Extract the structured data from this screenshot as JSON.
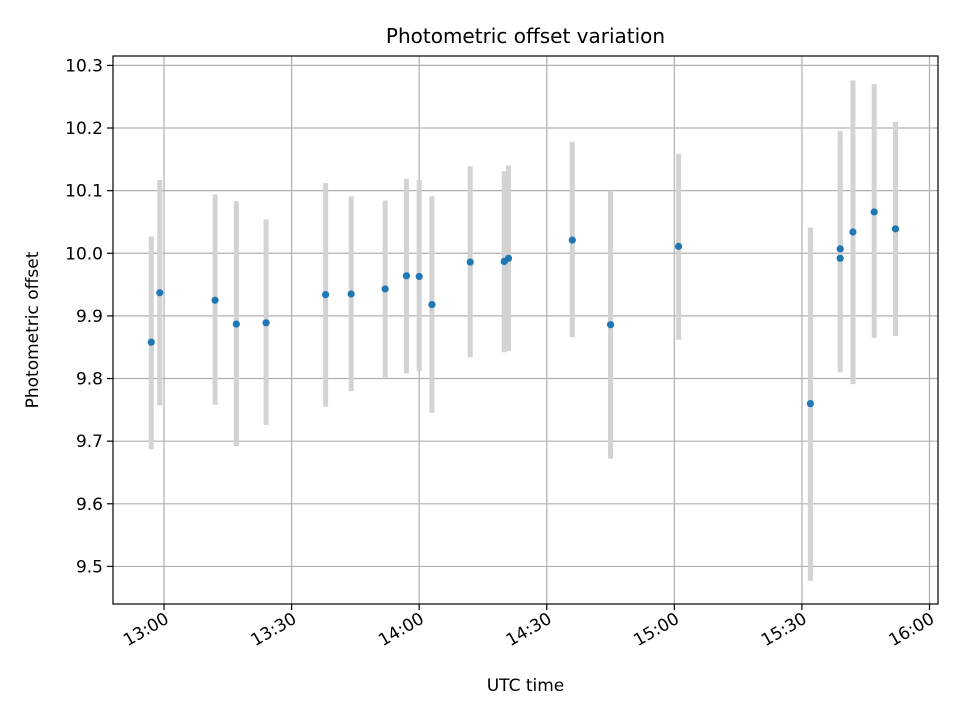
{
  "chart_data": {
    "type": "scatter",
    "title": "Photometric offset variation",
    "xlabel": "UTC time",
    "ylabel": "Photometric offset",
    "x_axis": {
      "kind": "time",
      "range": [
        "12:48",
        "16:02"
      ],
      "ticks": [
        "13:00",
        "13:30",
        "14:00",
        "14:30",
        "15:00",
        "15:30",
        "16:00"
      ]
    },
    "y_axis": {
      "range": [
        9.44,
        10.315
      ],
      "ticks": [
        "9.5",
        "9.6",
        "9.7",
        "9.8",
        "9.9",
        "10.0",
        "10.1",
        "10.2",
        "10.3"
      ]
    },
    "grid": true,
    "point_color": "#1f77b4",
    "errorbar_color": "#d3d3d3",
    "points": [
      {
        "x": "12:57",
        "y": 9.858,
        "yerr_low": 9.687,
        "yerr_high": 10.027
      },
      {
        "x": "12:59",
        "y": 9.937,
        "yerr_low": 9.757,
        "yerr_high": 10.117
      },
      {
        "x": "13:12",
        "y": 9.925,
        "yerr_low": 9.758,
        "yerr_high": 10.094
      },
      {
        "x": "13:17",
        "y": 9.887,
        "yerr_low": 9.692,
        "yerr_high": 10.083
      },
      {
        "x": "13:24",
        "y": 9.889,
        "yerr_low": 9.726,
        "yerr_high": 10.054
      },
      {
        "x": "13:38",
        "y": 9.934,
        "yerr_low": 9.755,
        "yerr_high": 10.112
      },
      {
        "x": "13:44",
        "y": 9.935,
        "yerr_low": 9.78,
        "yerr_high": 10.091
      },
      {
        "x": "13:52",
        "y": 9.943,
        "yerr_low": 9.802,
        "yerr_high": 10.084
      },
      {
        "x": "13:57",
        "y": 9.964,
        "yerr_low": 9.808,
        "yerr_high": 10.119
      },
      {
        "x": "14:00",
        "y": 9.963,
        "yerr_low": 9.812,
        "yerr_high": 10.117
      },
      {
        "x": "14:03",
        "y": 9.918,
        "yerr_low": 9.745,
        "yerr_high": 10.091
      },
      {
        "x": "14:12",
        "y": 9.986,
        "yerr_low": 9.834,
        "yerr_high": 10.139
      },
      {
        "x": "14:20",
        "y": 9.987,
        "yerr_low": 9.842,
        "yerr_high": 10.131
      },
      {
        "x": "14:21",
        "y": 9.992,
        "yerr_low": 9.844,
        "yerr_high": 10.14
      },
      {
        "x": "14:36",
        "y": 10.021,
        "yerr_low": 9.866,
        "yerr_high": 10.178
      },
      {
        "x": "14:45",
        "y": 9.886,
        "yerr_low": 9.672,
        "yerr_high": 10.1
      },
      {
        "x": "15:01",
        "y": 10.011,
        "yerr_low": 9.862,
        "yerr_high": 10.159
      },
      {
        "x": "15:32",
        "y": 9.76,
        "yerr_low": 9.477,
        "yerr_high": 10.041
      },
      {
        "x": "15:39",
        "y": 9.992,
        "yerr_low": 9.81,
        "yerr_high": 10.17
      },
      {
        "x": "15:39",
        "y": 10.007,
        "yerr_low": 9.82,
        "yerr_high": 10.195
      },
      {
        "x": "15:42",
        "y": 10.034,
        "yerr_low": 9.791,
        "yerr_high": 10.276
      },
      {
        "x": "15:47",
        "y": 10.066,
        "yerr_low": 9.865,
        "yerr_high": 10.27
      },
      {
        "x": "15:52",
        "y": 10.039,
        "yerr_low": 9.868,
        "yerr_high": 10.21
      }
    ]
  }
}
